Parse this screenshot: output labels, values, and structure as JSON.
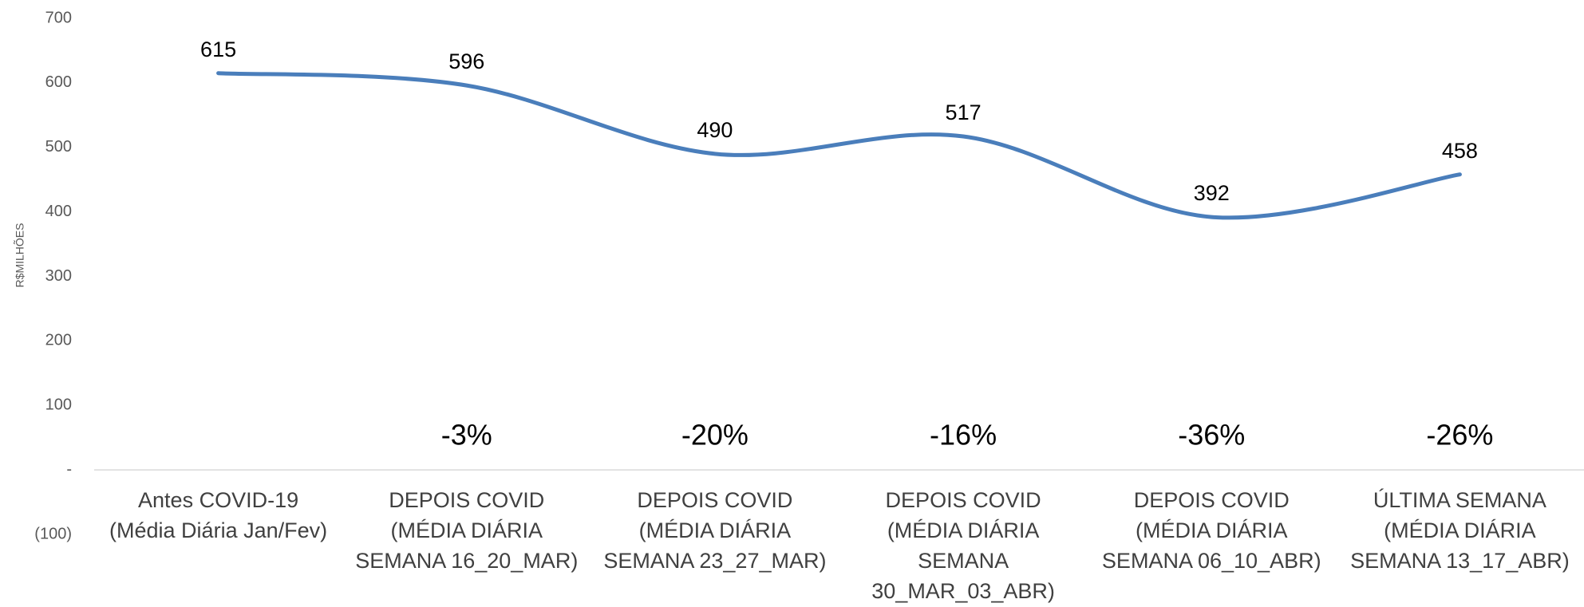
{
  "chart_data": {
    "type": "line",
    "ylabel": "R$MILHÕES",
    "categories": [
      "Antes COVID-19\n(Média Diária Jan/Fev)",
      "DEPOIS COVID\n(MÉDIA DIÁRIA\nSEMANA 16_20_MAR)",
      "DEPOIS COVID\n(MÉDIA DIÁRIA\nSEMANA 23_27_MAR)",
      "DEPOIS COVID\n(MÉDIA DIÁRIA\nSEMANA\n30_MAR_03_ABR)",
      "DEPOIS COVID\n(MÉDIA DIÁRIA\nSEMANA 06_10_ABR)",
      "ÚLTIMA SEMANA\n(MÉDIA DIÁRIA\nSEMANA 13_17_ABR)"
    ],
    "series": [
      {
        "name": "R$MILHÕES",
        "color": "#4a7ebb",
        "values": [
          615,
          596,
          490,
          517,
          392,
          458
        ]
      }
    ],
    "change_labels": [
      null,
      "-3%",
      "-20%",
      "-16%",
      "-36%",
      "-26%"
    ],
    "ylim": [
      -100,
      700
    ],
    "yticks": [
      {
        "value": -100,
        "label": "(100)"
      },
      {
        "value": 0,
        "label": "-"
      },
      100,
      200,
      300,
      400,
      500,
      600,
      700
    ],
    "smooth": true
  }
}
